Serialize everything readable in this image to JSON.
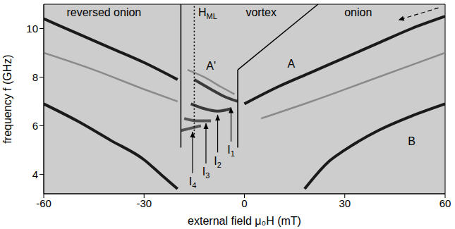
{
  "chart_data": {
    "type": "line",
    "xlabel": "external field μ₀H (mT)",
    "ylabel": "frequency f (GHz)",
    "xlim": [
      -60,
      60
    ],
    "ylim": [
      3.2,
      11
    ],
    "xticks": [
      -60,
      -30,
      0,
      30,
      60
    ],
    "yticks": [
      4,
      6,
      8,
      10
    ],
    "grid": false,
    "series": [
      {
        "color": "#1a1a1a",
        "line_style": "solid",
        "x": [
          -60,
          -50,
          -40,
          -30,
          -20
        ],
        "values": [
          10.4,
          9.8,
          9.2,
          8.6,
          7.9
        ]
      },
      {
        "color": "#1a1a1a",
        "line_style": "solid",
        "x": [
          0,
          10,
          20,
          30,
          40,
          50,
          60
        ],
        "values": [
          6.9,
          7.6,
          8.2,
          8.8,
          9.4,
          10.0,
          10.5
        ]
      },
      {
        "color": "#1a1a1a",
        "line_style": "solid",
        "x": [
          -60,
          -50,
          -40,
          -30,
          -25,
          -20
        ],
        "values": [
          6.9,
          6.2,
          5.4,
          4.6,
          4.0,
          3.4
        ]
      },
      {
        "color": "#1a1a1a",
        "line_style": "solid",
        "x": [
          18,
          25,
          30,
          40,
          50,
          60
        ],
        "values": [
          3.4,
          4.5,
          5.0,
          5.8,
          6.4,
          6.9
        ]
      },
      {
        "color": "#8a8a8a",
        "line_style": "solid",
        "x": [
          -60,
          -45,
          -30,
          -20
        ],
        "values": [
          9.0,
          8.3,
          7.5,
          7.0
        ]
      },
      {
        "color": "#8a8a8a",
        "line_style": "solid",
        "x": [
          5,
          20,
          40,
          60
        ],
        "values": [
          6.3,
          7.0,
          8.0,
          9.0
        ]
      },
      {
        "color": "#8a8a8a",
        "line_style": "solid",
        "x": [
          -17,
          -12,
          -7,
          -3
        ],
        "values": [
          8.3,
          8.0,
          7.6,
          7.3
        ]
      },
      {
        "color": "#3a3a3a",
        "line_style": "solid",
        "x": [
          -15,
          -10,
          -6,
          -2
        ],
        "values": [
          7.9,
          7.5,
          7.2,
          7.0
        ]
      },
      {
        "color": "#3a3a3a",
        "line_style": "solid",
        "x": [
          -16,
          -12,
          -8,
          -4
        ],
        "values": [
          6.9,
          6.7,
          6.6,
          6.7
        ]
      },
      {
        "color": "#555555",
        "line_style": "solid",
        "x": [
          -18,
          -14,
          -10
        ],
        "values": [
          6.3,
          6.2,
          6.2
        ]
      },
      {
        "color": "#555555",
        "line_style": "solid",
        "x": [
          -19,
          -16,
          -13
        ],
        "values": [
          5.8,
          5.9,
          6.0
        ]
      }
    ],
    "boundaries": [
      {
        "x": [
          -19,
          -19
        ],
        "y": [
          5.1,
          11
        ],
        "line_style": "solid"
      },
      {
        "x": [
          -15,
          -15
        ],
        "y": [
          5.5,
          11
        ],
        "line_style": "dotted"
      },
      {
        "x": [
          -2,
          -2
        ],
        "y": [
          5.1,
          8.3
        ],
        "line_style": "solid"
      },
      {
        "x": [
          -2,
          22
        ],
        "y": [
          8.3,
          11
        ],
        "line_style": "solid"
      }
    ],
    "arrows": [
      {
        "x": [
          -4,
          -4
        ],
        "y": [
          5.35,
          6.75
        ],
        "line_style": "solid"
      },
      {
        "x": [
          -8,
          -8
        ],
        "y": [
          4.9,
          6.45
        ],
        "line_style": "solid"
      },
      {
        "x": [
          -11.5,
          -11.5
        ],
        "y": [
          4.45,
          6.1
        ],
        "line_style": "solid"
      },
      {
        "x": [
          -15.5,
          -15.5
        ],
        "y": [
          4.05,
          5.75
        ],
        "line_style": "solid"
      },
      {
        "x": [
          58,
          46
        ],
        "y": [
          10.85,
          10.35
        ],
        "line_style": "dashed"
      }
    ],
    "annotations": [
      {
        "text": "reversed onion",
        "x": -42,
        "y": 10.5
      },
      {
        "text": "H",
        "sub": "ML",
        "x": -11,
        "y": 10.5
      },
      {
        "text": "vortex",
        "x": 5,
        "y": 10.5
      },
      {
        "text": "onion",
        "x": 34,
        "y": 10.5
      },
      {
        "text": "A'",
        "x": -10,
        "y": 8.3
      },
      {
        "text": "A",
        "x": 14,
        "y": 8.4
      },
      {
        "text": "B",
        "x": 50,
        "y": 5.2
      },
      {
        "text": "I",
        "sub": "1",
        "x": -4,
        "y": 4.85
      },
      {
        "text": "I",
        "sub": "2",
        "x": -8,
        "y": 4.4
      },
      {
        "text": "I",
        "sub": "3",
        "x": -11.5,
        "y": 3.95
      },
      {
        "text": "I",
        "sub": "4",
        "x": -15.5,
        "y": 3.55
      }
    ]
  }
}
